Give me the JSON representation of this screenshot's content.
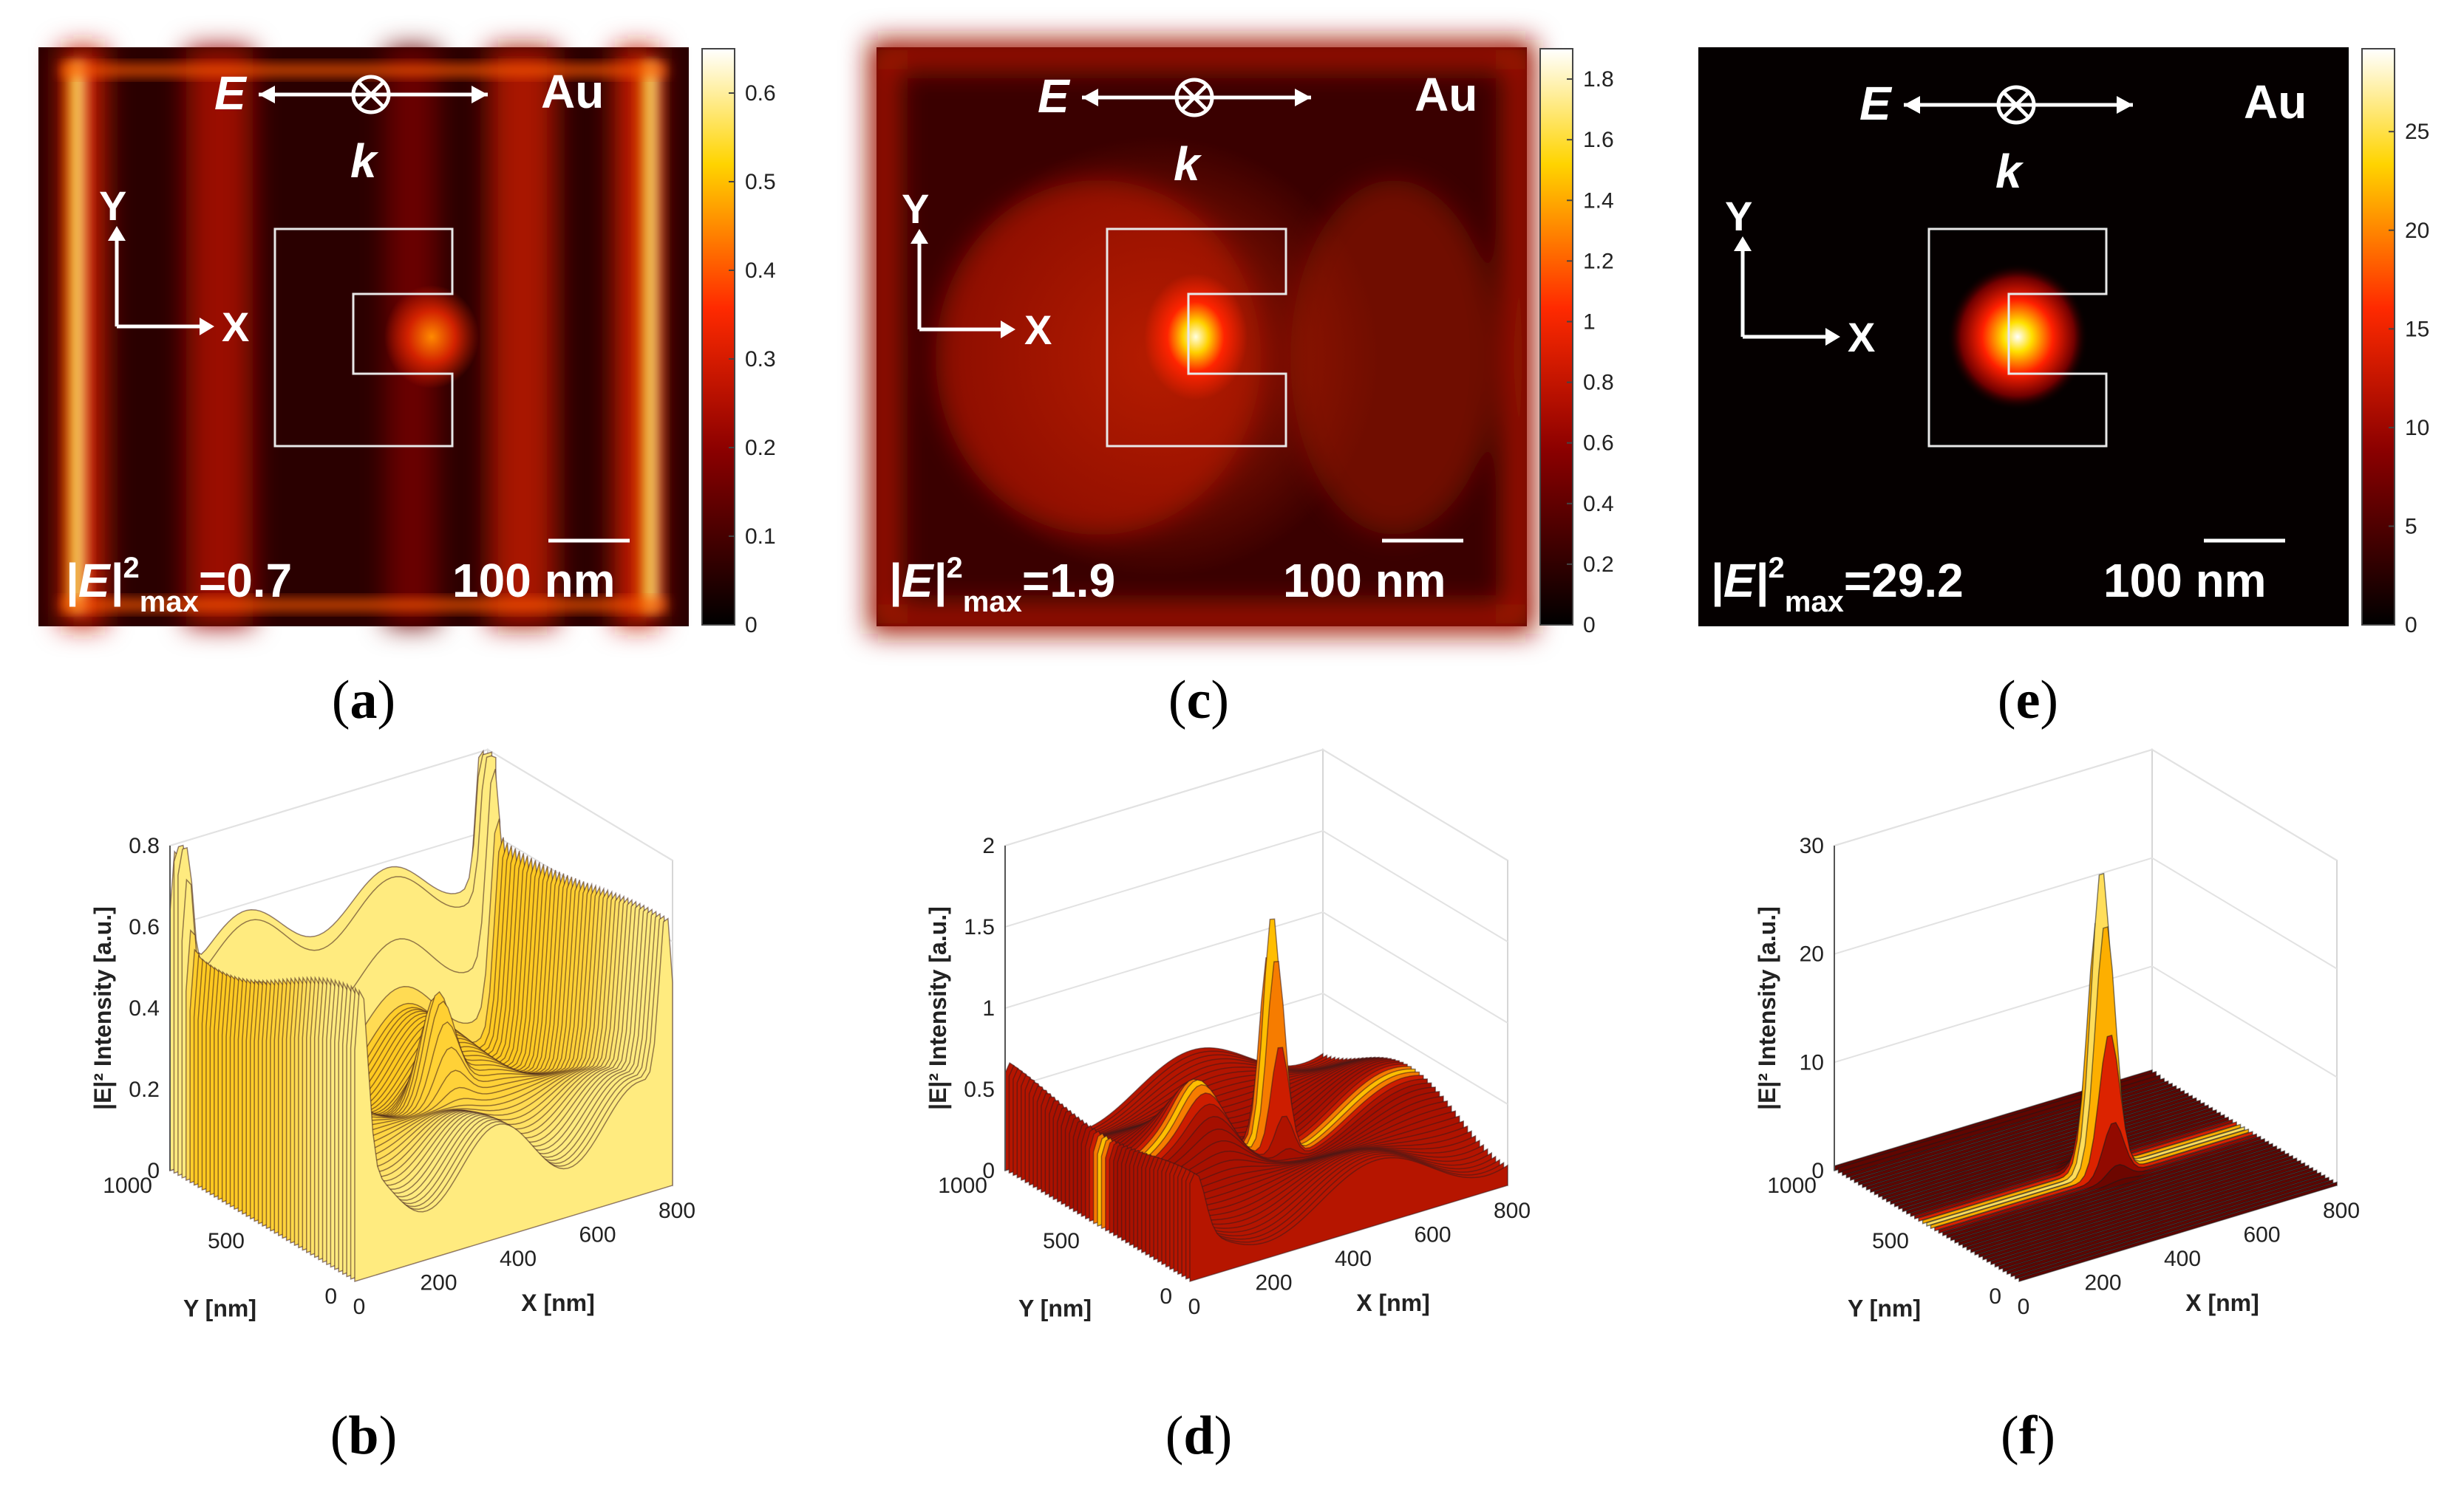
{
  "colors": {
    "cmap_low": "#000000",
    "cmap_mid": "#e81c00",
    "cmap_high": "#ffffff",
    "accent": "#ffe000"
  },
  "panels": [
    {
      "caption": "a",
      "material": "Au",
      "e_symbol": "E",
      "k_symbol": "k",
      "x_axis": "X",
      "y_axis": "Y",
      "emax_prefix": "|E|",
      "emax_sup": "2",
      "emax_sub": "max",
      "emax_value": "=0.7",
      "scale_text": "100 nm",
      "colorbar_ticks": [
        "0.6",
        "0.5",
        "0.4",
        "0.3",
        "0.2",
        "0.1",
        "0"
      ]
    },
    {
      "caption": "c",
      "material": "Au",
      "e_symbol": "E",
      "k_symbol": "k",
      "x_axis": "X",
      "y_axis": "Y",
      "emax_prefix": "|E|",
      "emax_sup": "2",
      "emax_sub": "max",
      "emax_value": "=1.9",
      "scale_text": "100 nm",
      "colorbar_ticks": [
        "1.8",
        "1.6",
        "1.4",
        "1.2",
        "1",
        "0.8",
        "0.6",
        "0.4",
        "0.2",
        "0"
      ]
    },
    {
      "caption": "e",
      "material": "Au",
      "e_symbol": "E",
      "k_symbol": "k",
      "x_axis": "X",
      "y_axis": "Y",
      "emax_prefix": "|E|",
      "emax_sup": "2",
      "emax_sub": "max",
      "emax_value": "=29.2",
      "scale_text": "100 nm",
      "colorbar_ticks": [
        "25",
        "20",
        "15",
        "10",
        "5",
        "0"
      ]
    }
  ],
  "surfaces": [
    {
      "caption": "b",
      "zlabel": "|E|² Intensity [a.u.]",
      "xlabel": "X [nm]",
      "ylabel": "Y [nm]",
      "zticks": [
        "0",
        "0.2",
        "0.4",
        "0.6",
        "0.8"
      ],
      "xticks": [
        "0",
        "200",
        "400",
        "600",
        "800"
      ],
      "yticks": [
        "0",
        "500",
        "1000"
      ]
    },
    {
      "caption": "d",
      "zlabel": "|E|² Intensity [a.u.]",
      "xlabel": "X [nm]",
      "ylabel": "Y [nm]",
      "zticks": [
        "0",
        "0.5",
        "1",
        "1.5",
        "2"
      ],
      "xticks": [
        "0",
        "200",
        "400",
        "600",
        "800"
      ],
      "yticks": [
        "0",
        "500",
        "1000"
      ]
    },
    {
      "caption": "f",
      "zlabel": "|E|² Intensity [a.u.]",
      "xlabel": "X [nm]",
      "ylabel": "Y [nm]",
      "zticks": [
        "0",
        "10",
        "20",
        "30"
      ],
      "xticks": [
        "0",
        "200",
        "400",
        "600",
        "800"
      ],
      "yticks": [
        "0",
        "500",
        "1000"
      ]
    }
  ],
  "chart_data": [
    {
      "type": "heatmap",
      "panel": "a",
      "title": "|E|² max = 0.7",
      "colorbar_range": [
        0,
        0.65
      ],
      "colorbar_ticks": [
        0,
        0.1,
        0.2,
        0.3,
        0.4,
        0.5,
        0.6
      ],
      "peak": 0.7,
      "hotspot": "inside C-aperture gap (weak)",
      "edges": "bright at left/right frame edges"
    },
    {
      "type": "surface",
      "panel": "b",
      "xlabel": "X [nm]",
      "ylabel": "Y [nm]",
      "zlabel": "|E|² Intensity [a.u.]",
      "xlim": [
        0,
        800
      ],
      "ylim": [
        0,
        1000
      ],
      "zlim": [
        0,
        0.8
      ],
      "peak": 0.7
    },
    {
      "type": "heatmap",
      "panel": "c",
      "title": "|E|² max = 1.9",
      "colorbar_range": [
        0,
        1.9
      ],
      "colorbar_ticks": [
        0,
        0.2,
        0.4,
        0.6,
        0.8,
        1,
        1.2,
        1.4,
        1.6,
        1.8
      ],
      "peak": 1.9,
      "hotspot": "inside C-aperture gap"
    },
    {
      "type": "surface",
      "panel": "d",
      "xlabel": "X [nm]",
      "ylabel": "Y [nm]",
      "zlabel": "|E|² Intensity [a.u.]",
      "xlim": [
        0,
        800
      ],
      "ylim": [
        0,
        1000
      ],
      "zlim": [
        0,
        2
      ],
      "peak": 1.9
    },
    {
      "type": "heatmap",
      "panel": "e",
      "title": "|E|² max = 29.2",
      "colorbar_range": [
        0,
        29.2
      ],
      "colorbar_ticks": [
        0,
        5,
        10,
        15,
        20,
        25
      ],
      "peak": 29.2,
      "hotspot": "inside C-aperture gap (strong)"
    },
    {
      "type": "surface",
      "panel": "f",
      "xlabel": "X [nm]",
      "ylabel": "Y [nm]",
      "zlabel": "|E|² Intensity [a.u.]",
      "xlim": [
        0,
        800
      ],
      "ylim": [
        0,
        1000
      ],
      "zlim": [
        0,
        30
      ],
      "peak": 29.2
    }
  ]
}
